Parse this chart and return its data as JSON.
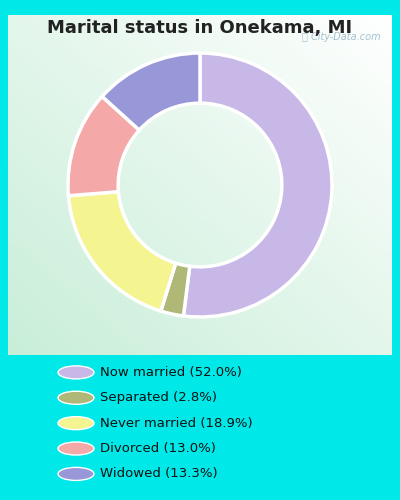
{
  "title": "Marital status in Onekama, MI",
  "slices": [
    {
      "label": "Now married (52.0%)",
      "value": 52.0,
      "color": "#C8B8E8"
    },
    {
      "label": "Separated (2.8%)",
      "value": 2.8,
      "color": "#B0B878"
    },
    {
      "label": "Never married (18.9%)",
      "value": 18.9,
      "color": "#F4F490"
    },
    {
      "label": "Divorced (13.0%)",
      "value": 13.0,
      "color": "#F4A8A8"
    },
    {
      "label": "Widowed (13.3%)",
      "value": 13.3,
      "color": "#9898D8"
    }
  ],
  "legend_colors": [
    "#C8B8E8",
    "#B0B878",
    "#F4F490",
    "#F4A8A8",
    "#9898D8"
  ],
  "legend_labels": [
    "Now married (52.0%)",
    "Separated (2.8%)",
    "Never married (18.9%)",
    "Divorced (13.0%)",
    "Widowed (13.3%)"
  ],
  "outer_bg": "#00E8E8",
  "chart_bg_left": "#C8EED8",
  "chart_bg_right": "#E8F8F0",
  "title_fontsize": 13,
  "watermark": "City-Data.com"
}
